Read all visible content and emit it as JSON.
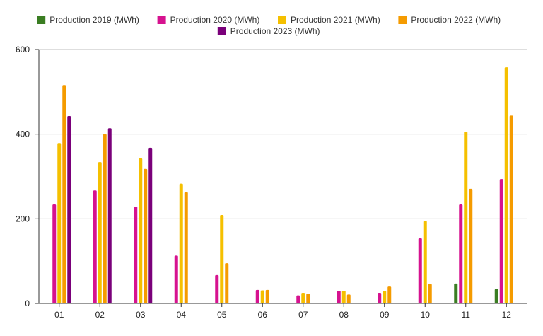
{
  "chart_data": {
    "type": "bar",
    "categories": [
      "01",
      "02",
      "03",
      "04",
      "05",
      "06",
      "07",
      "08",
      "09",
      "10",
      "11",
      "12"
    ],
    "series": [
      {
        "name": "Production 2019 (MWh)",
        "color": "#3a7d22",
        "values": [
          null,
          null,
          null,
          null,
          null,
          null,
          null,
          null,
          null,
          null,
          47,
          34
        ]
      },
      {
        "name": "Production 2020 (MWh)",
        "color": "#d6128f",
        "values": [
          234,
          267,
          229,
          113,
          67,
          32,
          19,
          30,
          25,
          154,
          234,
          294
        ]
      },
      {
        "name": "Production 2021 (MWh)",
        "color": "#f5c000",
        "values": [
          379,
          334,
          343,
          283,
          209,
          31,
          25,
          30,
          30,
          195,
          406,
          558
        ]
      },
      {
        "name": "Production 2022 (MWh)",
        "color": "#f59b00",
        "values": [
          516,
          400,
          318,
          263,
          95,
          32,
          23,
          21,
          40,
          46,
          271,
          444
        ]
      },
      {
        "name": "Production 2023 (MWh)",
        "color": "#7a007a",
        "values": [
          443,
          414,
          368,
          null,
          null,
          null,
          null,
          null,
          null,
          null,
          null,
          null
        ]
      }
    ],
    "yticks": [
      0,
      200,
      400,
      600
    ],
    "ylim": [
      0,
      600
    ],
    "grid": true,
    "legend_position": "top-center",
    "title": "",
    "xlabel": "",
    "ylabel": ""
  }
}
